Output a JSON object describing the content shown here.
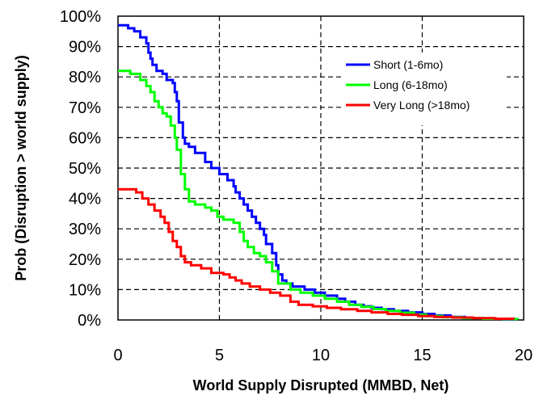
{
  "chart_data": {
    "type": "line",
    "xlabel": "World Supply Disrupted (MMBD, Net)",
    "ylabel": "Prob (Disruption > world supply)",
    "xlim": [
      0,
      20
    ],
    "ylim": [
      0,
      100
    ],
    "x_ticks": [
      "0",
      "5",
      "10",
      "15",
      "20"
    ],
    "y_ticks": [
      "0%",
      "10%",
      "20%",
      "30%",
      "40%",
      "50%",
      "60%",
      "70%",
      "80%",
      "90%",
      "100%"
    ],
    "grid": "dashed",
    "legend_position": "top-right",
    "series": [
      {
        "name": "Short (1-6mo)",
        "color": "#0000ff",
        "points": [
          [
            0,
            97
          ],
          [
            0.5,
            96
          ],
          [
            0.8,
            95
          ],
          [
            1.1,
            93
          ],
          [
            1.4,
            91
          ],
          [
            1.5,
            88
          ],
          [
            1.6,
            86
          ],
          [
            1.7,
            84
          ],
          [
            1.9,
            82
          ],
          [
            2.2,
            81
          ],
          [
            2.4,
            79
          ],
          [
            2.7,
            78
          ],
          [
            2.8,
            75
          ],
          [
            2.9,
            72
          ],
          [
            3.0,
            65
          ],
          [
            3.2,
            60
          ],
          [
            3.3,
            58
          ],
          [
            3.5,
            57
          ],
          [
            3.8,
            55
          ],
          [
            4.3,
            52
          ],
          [
            4.6,
            50
          ],
          [
            5.0,
            48
          ],
          [
            5.4,
            46
          ],
          [
            5.7,
            44
          ],
          [
            5.8,
            42
          ],
          [
            6.0,
            40
          ],
          [
            6.2,
            38
          ],
          [
            6.4,
            36
          ],
          [
            6.6,
            34
          ],
          [
            6.8,
            32
          ],
          [
            7.0,
            30
          ],
          [
            7.2,
            28
          ],
          [
            7.3,
            25
          ],
          [
            7.6,
            22
          ],
          [
            7.8,
            18
          ],
          [
            7.9,
            15
          ],
          [
            8.1,
            13
          ],
          [
            8.3,
            12
          ],
          [
            8.6,
            11
          ],
          [
            9.2,
            10
          ],
          [
            9.7,
            9
          ],
          [
            10.2,
            8
          ],
          [
            10.8,
            7
          ],
          [
            11.2,
            6
          ],
          [
            11.7,
            5
          ],
          [
            12.1,
            4.5
          ],
          [
            12.5,
            4
          ],
          [
            13.0,
            3.5
          ],
          [
            13.6,
            3
          ],
          [
            14.3,
            2.5
          ],
          [
            15.0,
            2
          ],
          [
            15.6,
            1.5
          ],
          [
            16.4,
            1
          ],
          [
            17.1,
            0.6
          ],
          [
            18.0,
            0.4
          ],
          [
            19.0,
            0.2
          ],
          [
            19.6,
            0.1
          ]
        ]
      },
      {
        "name": "Long (6-18mo)",
        "color": "#00ff00",
        "points": [
          [
            0,
            82
          ],
          [
            0.6,
            81
          ],
          [
            1.1,
            79
          ],
          [
            1.4,
            77
          ],
          [
            1.6,
            75
          ],
          [
            1.8,
            72
          ],
          [
            2.0,
            70
          ],
          [
            2.2,
            68
          ],
          [
            2.4,
            67
          ],
          [
            2.6,
            64
          ],
          [
            2.8,
            60
          ],
          [
            2.9,
            56
          ],
          [
            3.1,
            48
          ],
          [
            3.3,
            43
          ],
          [
            3.5,
            39
          ],
          [
            3.8,
            38
          ],
          [
            4.3,
            37
          ],
          [
            4.6,
            36
          ],
          [
            4.9,
            34
          ],
          [
            5.2,
            33
          ],
          [
            5.7,
            32
          ],
          [
            6.0,
            29
          ],
          [
            6.2,
            26
          ],
          [
            6.4,
            24
          ],
          [
            6.7,
            22
          ],
          [
            7.0,
            21
          ],
          [
            7.3,
            19
          ],
          [
            7.6,
            16
          ],
          [
            7.9,
            12
          ],
          [
            8.5,
            10
          ],
          [
            9.0,
            9
          ],
          [
            9.6,
            8
          ],
          [
            10.2,
            7
          ],
          [
            10.8,
            6
          ],
          [
            11.4,
            5
          ],
          [
            12.0,
            4.3
          ],
          [
            12.6,
            3.6
          ],
          [
            13.2,
            3
          ],
          [
            13.9,
            2.4
          ],
          [
            14.6,
            1.8
          ],
          [
            15.2,
            1.3
          ],
          [
            16.0,
            0.9
          ],
          [
            17.0,
            0.6
          ],
          [
            18.0,
            0.4
          ],
          [
            19.0,
            0.3
          ],
          [
            19.7,
            0.2
          ]
        ]
      },
      {
        "name": "Very Long (>18mo)",
        "color": "#ff0000",
        "points": [
          [
            0,
            43
          ],
          [
            0.9,
            42
          ],
          [
            1.2,
            40
          ],
          [
            1.5,
            38
          ],
          [
            1.8,
            36
          ],
          [
            2.1,
            34
          ],
          [
            2.3,
            32
          ],
          [
            2.5,
            29
          ],
          [
            2.7,
            26
          ],
          [
            2.9,
            24
          ],
          [
            3.1,
            21
          ],
          [
            3.3,
            19
          ],
          [
            3.6,
            18
          ],
          [
            4.1,
            17
          ],
          [
            4.6,
            15.5
          ],
          [
            5.2,
            15
          ],
          [
            5.5,
            14
          ],
          [
            5.8,
            13
          ],
          [
            6.1,
            12
          ],
          [
            6.5,
            11
          ],
          [
            7.0,
            10
          ],
          [
            7.5,
            9
          ],
          [
            8.0,
            8
          ],
          [
            8.5,
            6
          ],
          [
            8.9,
            5
          ],
          [
            9.6,
            4.5
          ],
          [
            10.3,
            4
          ],
          [
            11.0,
            3.5
          ],
          [
            11.8,
            3
          ],
          [
            12.5,
            2.5
          ],
          [
            13.3,
            2
          ],
          [
            14.0,
            1.7
          ],
          [
            14.8,
            1.3
          ],
          [
            15.6,
            1
          ],
          [
            16.5,
            0.8
          ],
          [
            17.5,
            0.6
          ],
          [
            18.6,
            0.4
          ],
          [
            19.5,
            0.2
          ]
        ]
      }
    ]
  }
}
